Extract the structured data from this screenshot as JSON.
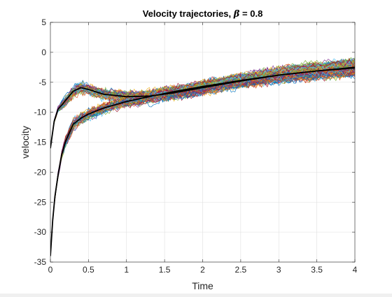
{
  "chart_data": {
    "type": "line",
    "title": "Velocity trajectories, β = 0.8",
    "title_prefix": "Velocity trajectories, ",
    "title_symbol": "β",
    "title_suffix": " = 0.8",
    "xlabel": "Time",
    "ylabel": "velocity",
    "xlim": [
      0,
      4
    ],
    "ylim": [
      -35,
      5
    ],
    "xticks": [
      0,
      0.5,
      1,
      1.5,
      2,
      2.5,
      3,
      3.5,
      4
    ],
    "xtick_labels": [
      "0",
      "0.5",
      "1",
      "1.5",
      "2",
      "2.5",
      "3",
      "3.5",
      "4"
    ],
    "yticks": [
      -35,
      -30,
      -25,
      -20,
      -15,
      -10,
      -5,
      0,
      5
    ],
    "ytick_labels": [
      "-35",
      "-30",
      "-25",
      "-20",
      "-15",
      "-10",
      "-5",
      "0",
      "5"
    ],
    "grid": true,
    "series": [
      {
        "role": "mean trajectory from -16",
        "color": "#000000",
        "x": [
          0,
          0.05,
          0.1,
          0.15,
          0.2,
          0.3,
          0.4,
          0.5,
          0.7,
          1.0,
          1.3,
          1.6,
          2.0,
          2.5,
          3.0,
          3.5,
          4.0
        ],
        "y": [
          -16,
          -11.5,
          -9.5,
          -8.8,
          -8.0,
          -6.5,
          -5.9,
          -6.2,
          -7.0,
          -7.4,
          -7.3,
          -6.8,
          -5.9,
          -4.8,
          -3.8,
          -3.1,
          -2.6
        ]
      },
      {
        "role": "mean trajectory from -34",
        "color": "#000000",
        "x": [
          0,
          0.03,
          0.06,
          0.1,
          0.15,
          0.2,
          0.3,
          0.4,
          0.5,
          0.7,
          1.0,
          1.3,
          1.6,
          2.0,
          2.5,
          3.0,
          3.5,
          4.0
        ],
        "y": [
          -34,
          -28,
          -24,
          -20.5,
          -17,
          -14.8,
          -12.0,
          -11.0,
          -10.3,
          -9.3,
          -8.2,
          -7.4,
          -6.6,
          -5.7,
          -4.7,
          -3.8,
          -3.1,
          -2.5
        ]
      }
    ],
    "band_colors": [
      "#0072bd",
      "#d95319",
      "#edb120",
      "#7e2f8e",
      "#77ac30",
      "#4dbeee",
      "#a2142f"
    ]
  }
}
